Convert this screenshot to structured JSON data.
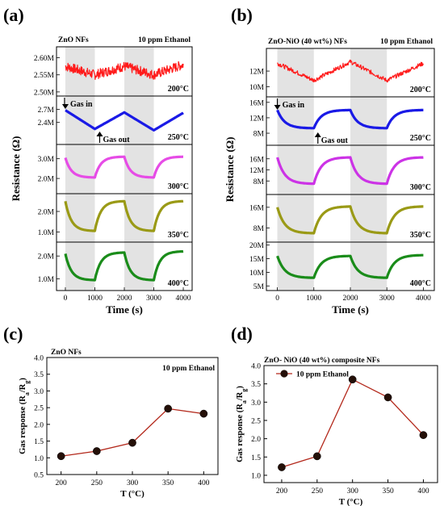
{
  "figure": {
    "labels": [
      "(a)",
      "(b)",
      "(c)",
      "(d)"
    ]
  },
  "chart_data": [
    {
      "panel": "(a)",
      "type": "line",
      "title_left": "ZnO NFs",
      "title_right": "10 ppm Ethanol",
      "xlabel": "Time (s)",
      "ylabel": "Resistance (Ω)",
      "xlim": [
        -300,
        4300
      ],
      "xticks": [
        0,
        1000,
        2000,
        3000,
        4000
      ],
      "shaded_intervals": [
        [
          0,
          1000
        ],
        [
          2000,
          3000
        ]
      ],
      "annotations": {
        "gas_in": "Gas in",
        "gas_out": "Gas out"
      },
      "subplots": [
        {
          "temperature": "200°C",
          "color": "#ff1a1a",
          "ylim": [
            2.495,
            2.625
          ],
          "ticks": [
            2.5,
            2.55,
            2.6
          ],
          "tick_labels": [
            "2.50M",
            "2.55M",
            "2.60M"
          ],
          "style": "noisy",
          "x": [
            0,
            1000,
            2000,
            3000,
            4000
          ],
          "y": [
            2.575,
            2.55,
            2.575,
            2.55,
            2.58
          ]
        },
        {
          "temperature": "250°C",
          "color": "#1a1ae6",
          "ylim": [
            1.95,
            2.95
          ],
          "ticks": [
            2.4,
            2.7
          ],
          "tick_labels": [
            "2.4M",
            "2.7M"
          ],
          "style": "linear",
          "x": [
            0,
            1000,
            2000,
            3000,
            4000
          ],
          "y": [
            2.68,
            2.25,
            2.63,
            2.22,
            2.62
          ]
        },
        {
          "temperature": "300°C",
          "color": "#e64ce6",
          "ylim": [
            1.35,
            3.6
          ],
          "ticks": [
            2.0,
            3.0
          ],
          "tick_labels": [
            "2.0M",
            "3.0M"
          ],
          "style": "exp",
          "x": [
            0,
            1000,
            2000,
            3000,
            4000
          ],
          "y": [
            3.05,
            2.05,
            3.1,
            2.05,
            3.1
          ]
        },
        {
          "temperature": "350°C",
          "color": "#9a9a16",
          "ylim": [
            0.62,
            2.75
          ],
          "ticks": [
            1.0,
            2.0
          ],
          "tick_labels": [
            "1.0M",
            "2.0M"
          ],
          "style": "exp",
          "x": [
            0,
            1000,
            2000,
            3000,
            4000
          ],
          "y": [
            2.5,
            1.05,
            2.5,
            1.05,
            2.5
          ]
        },
        {
          "temperature": "400°C",
          "color": "#1a8c1a",
          "ylim": [
            0.6,
            2.5
          ],
          "ticks": [
            1.0,
            2.0
          ],
          "tick_labels": [
            "1.0M",
            "2.0M"
          ],
          "style": "exp",
          "x": [
            0,
            1000,
            2000,
            3000,
            4000
          ],
          "y": [
            2.1,
            0.95,
            2.15,
            0.95,
            2.2
          ]
        }
      ]
    },
    {
      "panel": "(b)",
      "type": "line",
      "title_left": "ZnO-NiO (40 wt%) NFs",
      "title_right": "10 ppm Ethanol",
      "xlabel": "Time (s)",
      "ylabel": "Resistance (Ω)",
      "xlim": [
        -300,
        4300
      ],
      "xticks": [
        0,
        1000,
        2000,
        3000,
        4000
      ],
      "shaded_intervals": [
        [
          0,
          1000
        ],
        [
          2000,
          3000
        ]
      ],
      "annotations": {
        "gas_in": "Gas in",
        "gas_out": "Gas out"
      },
      "subplots": [
        {
          "temperature": "200°C",
          "color": "#ff1a1a",
          "ylim": [
            9.0,
            14.6
          ],
          "ticks": [
            10,
            12
          ],
          "tick_labels": [
            "10M",
            "12M"
          ],
          "style": "noisy_linear",
          "x": [
            0,
            1000,
            2000,
            3000,
            4000
          ],
          "y": [
            13.0,
            10.8,
            13.2,
            10.8,
            13.0
          ]
        },
        {
          "temperature": "250°C",
          "color": "#1a1ae6",
          "ylim": [
            5.5,
            16.8
          ],
          "ticks": [
            8,
            12,
            16
          ],
          "tick_labels": [
            "8M",
            "12M",
            "16M"
          ],
          "style": "exp",
          "x": [
            0,
            1000,
            2000,
            3000,
            4000
          ],
          "y": [
            14.0,
            9.3,
            14.0,
            9.3,
            14.0
          ]
        },
        {
          "temperature": "300°C",
          "color": "#cc33e6",
          "ylim": [
            4.0,
            20.0
          ],
          "ticks": [
            8,
            12,
            16
          ],
          "tick_labels": [
            "8M",
            "12M",
            "16M"
          ],
          "style": "exp",
          "x": [
            0,
            1000,
            2000,
            3000,
            4000
          ],
          "y": [
            16.5,
            7.0,
            16.5,
            7.0,
            16.5
          ]
        },
        {
          "temperature": "350°C",
          "color": "#9a9a16",
          "ylim": [
            3.5,
            20.0
          ],
          "ticks": [
            8,
            16
          ],
          "tick_labels": [
            "8M",
            "16M"
          ],
          "style": "exp",
          "x": [
            0,
            1000,
            2000,
            3000,
            4000
          ],
          "y": [
            16.0,
            6.0,
            16.3,
            6.0,
            16.3
          ]
        },
        {
          "temperature": "400°C",
          "color": "#1a8c1a",
          "ylim": [
            4.2,
            20.2
          ],
          "ticks": [
            5,
            10,
            15,
            20
          ],
          "tick_labels": [
            "5M",
            "10M",
            "15M",
            "20M"
          ],
          "style": "exp",
          "x": [
            0,
            1000,
            2000,
            3000,
            4000
          ],
          "y": [
            16.0,
            8.0,
            16.0,
            8.0,
            16.3
          ]
        }
      ]
    },
    {
      "panel": "(c)",
      "type": "line",
      "title": "ZnO NFs",
      "annotation": "10 ppm Ethanol",
      "xlabel": "T (°C)",
      "ylabel": "Gas response (Ra/Rg)",
      "xlim": [
        180,
        420
      ],
      "ylim": [
        0.5,
        4.0
      ],
      "xticks": [
        200,
        250,
        300,
        350,
        400
      ],
      "yticks": [
        0.5,
        1.0,
        1.5,
        2.0,
        2.5,
        3.0,
        3.5,
        4.0
      ],
      "ytick_labels": [
        "0.5",
        "1.0",
        "1.5",
        "2.0",
        "2.5",
        "3.0",
        "3.5",
        "4.0"
      ],
      "x": [
        200,
        250,
        300,
        350,
        400
      ],
      "y": [
        1.05,
        1.2,
        1.45,
        2.47,
        2.32
      ]
    },
    {
      "panel": "(d)",
      "type": "line",
      "title": "ZnO- NiO (40 wt%) composite NFs",
      "legend": "10 ppm Ethanol",
      "xlabel": "T (°C)",
      "ylabel": "Gas response (Ra/Rg)",
      "xlim": [
        175,
        420
      ],
      "ylim": [
        0.8,
        4.0
      ],
      "xticks": [
        200,
        250,
        300,
        350,
        400
      ],
      "yticks": [
        1.0,
        1.5,
        2.0,
        2.5,
        3.0,
        3.5,
        4.0
      ],
      "ytick_labels": [
        "1.0",
        "1.5",
        "2.0",
        "2.5",
        "3.0",
        "3.5",
        "4.0"
      ],
      "x": [
        200,
        250,
        300,
        350,
        400
      ],
      "y": [
        1.22,
        1.52,
        3.62,
        3.13,
        2.1
      ]
    }
  ]
}
